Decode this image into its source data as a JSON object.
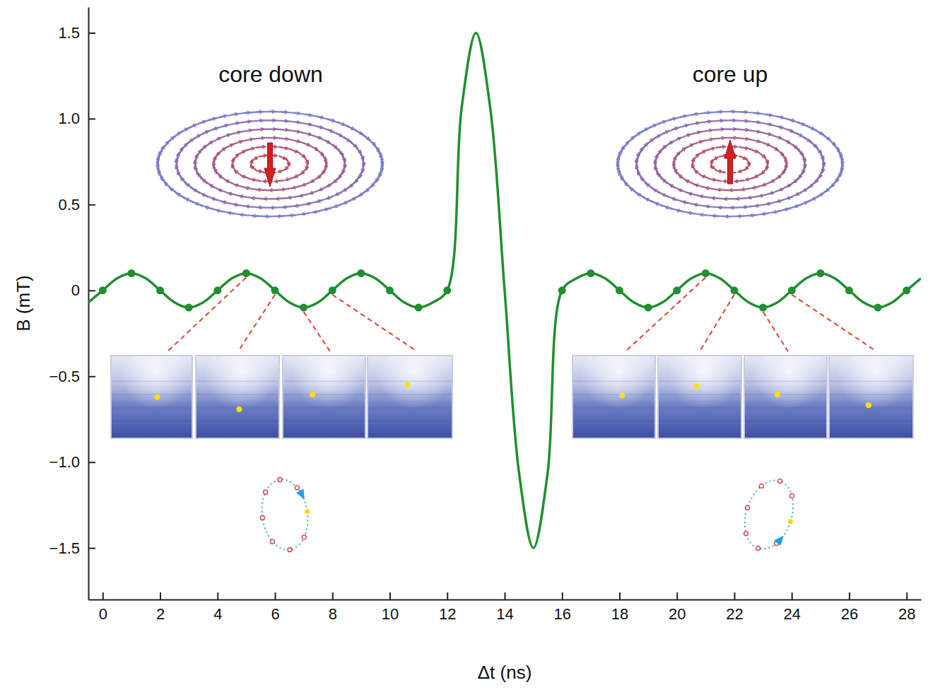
{
  "chart_data": {
    "type": "line",
    "xlabel": "Δt (ns)",
    "ylabel": "B (mT)",
    "xlim": [
      -0.5,
      28.5
    ],
    "ylim": [
      -1.8,
      1.65
    ],
    "xticks": [
      0,
      2,
      4,
      6,
      8,
      10,
      12,
      14,
      16,
      18,
      20,
      22,
      24,
      26,
      28
    ],
    "yticks": [
      {
        "value": -1.5,
        "label": "−1.5"
      },
      {
        "value": -1,
        "label": "−1.0"
      },
      {
        "value": -0.5,
        "label": "−0.5"
      },
      0,
      0.5,
      {
        "value": 1,
        "label": "1.0"
      },
      1.5
    ],
    "annotations": [
      {
        "text": "core down"
      },
      {
        "text": "core up"
      }
    ],
    "series": [
      {
        "type": "line",
        "color": "#1f8f2f",
        "x": [
          -0.5,
          0,
          0.5,
          1,
          1.5,
          2,
          2.5,
          3,
          3.5,
          4,
          4.5,
          5,
          5.5,
          6,
          6.5,
          7,
          7.5,
          8,
          8.5,
          9,
          9.5,
          10,
          10.5,
          11,
          11.5,
          12,
          12.5,
          13,
          13.5,
          14,
          14.5,
          15,
          15.5,
          16,
          16.5,
          17,
          17.5,
          18,
          18.5,
          19,
          19.5,
          20,
          20.5,
          21,
          21.5,
          22,
          22.5,
          23,
          23.5,
          24,
          24.5,
          25,
          25.5,
          26,
          26.5,
          27,
          27.5,
          28,
          28.5
        ],
        "values": [
          -0.07,
          0,
          0.07,
          0.1,
          0.07,
          0,
          -0.07,
          -0.1,
          -0.07,
          0,
          0.07,
          0.1,
          0.07,
          0,
          -0.07,
          -0.1,
          -0.07,
          0,
          0.07,
          0.1,
          0.07,
          0,
          -0.07,
          -0.1,
          -0.07,
          0,
          1.06,
          1.5,
          1.06,
          0,
          -1.06,
          -1.5,
          -1.06,
          0,
          0.07,
          0.1,
          0.07,
          0,
          -0.07,
          -0.1,
          -0.07,
          0,
          0.07,
          0.1,
          0.07,
          0,
          -0.07,
          -0.1,
          -0.07,
          0,
          0.07,
          0.1,
          0.07,
          0,
          -0.07,
          -0.1,
          -0.07,
          0,
          0.07
        ]
      },
      {
        "type": "scatter",
        "marker": "circle",
        "color": "#1f8f2f",
        "x": [
          0,
          1,
          2,
          3,
          4,
          5,
          6,
          7,
          8,
          9,
          10,
          11,
          12,
          16,
          17,
          18,
          19,
          20,
          21,
          22,
          23,
          24,
          25,
          26,
          27,
          28
        ],
        "values": [
          0,
          0.1,
          0,
          -0.1,
          0,
          0.1,
          0,
          -0.1,
          0,
          0.1,
          0,
          -0.1,
          0,
          0,
          0.1,
          0,
          -0.1,
          0,
          0.1,
          0,
          -0.1,
          0,
          0.1,
          0,
          -0.1,
          0
        ]
      }
    ]
  }
}
